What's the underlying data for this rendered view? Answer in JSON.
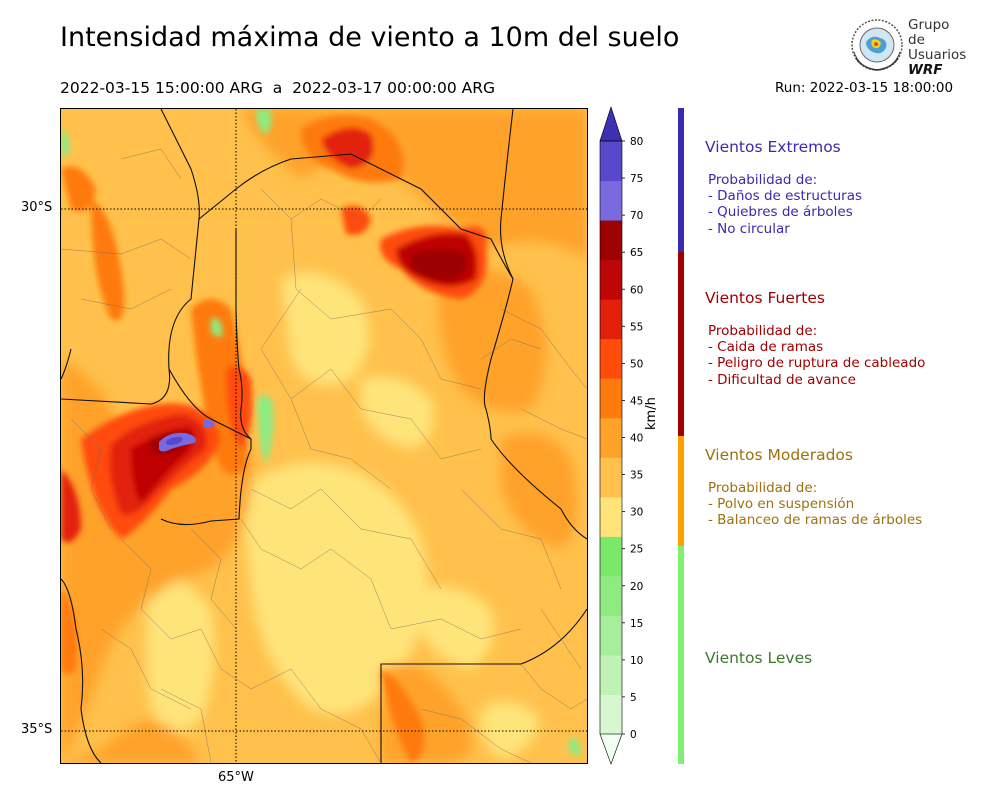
{
  "header": {
    "title": "Intensidad máxima de viento a 10m del suelo",
    "period": "2022-03-15 15:00:00 ARG  a  2022-03-17 00:00:00 ARG",
    "run": "Run: 2022-03-15 18:00:00"
  },
  "logo": {
    "line1": "Grupo de",
    "line2": "Usuarios",
    "line3": "WRF"
  },
  "map": {
    "lat_labels": [
      "30°S",
      "35°S"
    ],
    "lon_labels": [
      "65°W"
    ]
  },
  "colorbar": {
    "units": "km/h",
    "ticks": [
      "0",
      "5",
      "10",
      "15",
      "20",
      "25",
      "30",
      "35",
      "40",
      "45",
      "50",
      "55",
      "60",
      "65",
      "70",
      "75",
      "80"
    ],
    "colors": [
      "#f0fff0",
      "#d6f7d0",
      "#bff2b4",
      "#a7ee9a",
      "#8fea82",
      "#7ae86a",
      "#ffe47a",
      "#ffc14c",
      "#ffa229",
      "#ff7a0d",
      "#ff4c0a",
      "#e2200a",
      "#bf0606",
      "#9c0202",
      "#7a6ae0",
      "#5848cc",
      "#3d30b2"
    ]
  },
  "categories": [
    {
      "title": "Vientos Extremos",
      "color": "#3a2ab0",
      "desc": [
        "Probabilidad de:",
        "- Daños de estructuras",
        "- Quiebres de árboles",
        "- No circular"
      ]
    },
    {
      "title": "Vientos Fuertes",
      "color": "#a00000",
      "desc": [
        "Probabilidad de:",
        "- Caida de ramas",
        "- Peligro de ruptura de cableado",
        "- Dificultad de avance"
      ]
    },
    {
      "title": "Vientos Moderados",
      "color": "#a07010",
      "bar_color": "#ffa000",
      "desc": [
        "Probabilidad de:",
        "- Polvo en suspensión",
        "- Balanceo de ramas de árboles"
      ]
    },
    {
      "title": "Vientos Leves",
      "color": "#3a7a2a",
      "bar_color": "#80f070",
      "desc": []
    }
  ]
}
